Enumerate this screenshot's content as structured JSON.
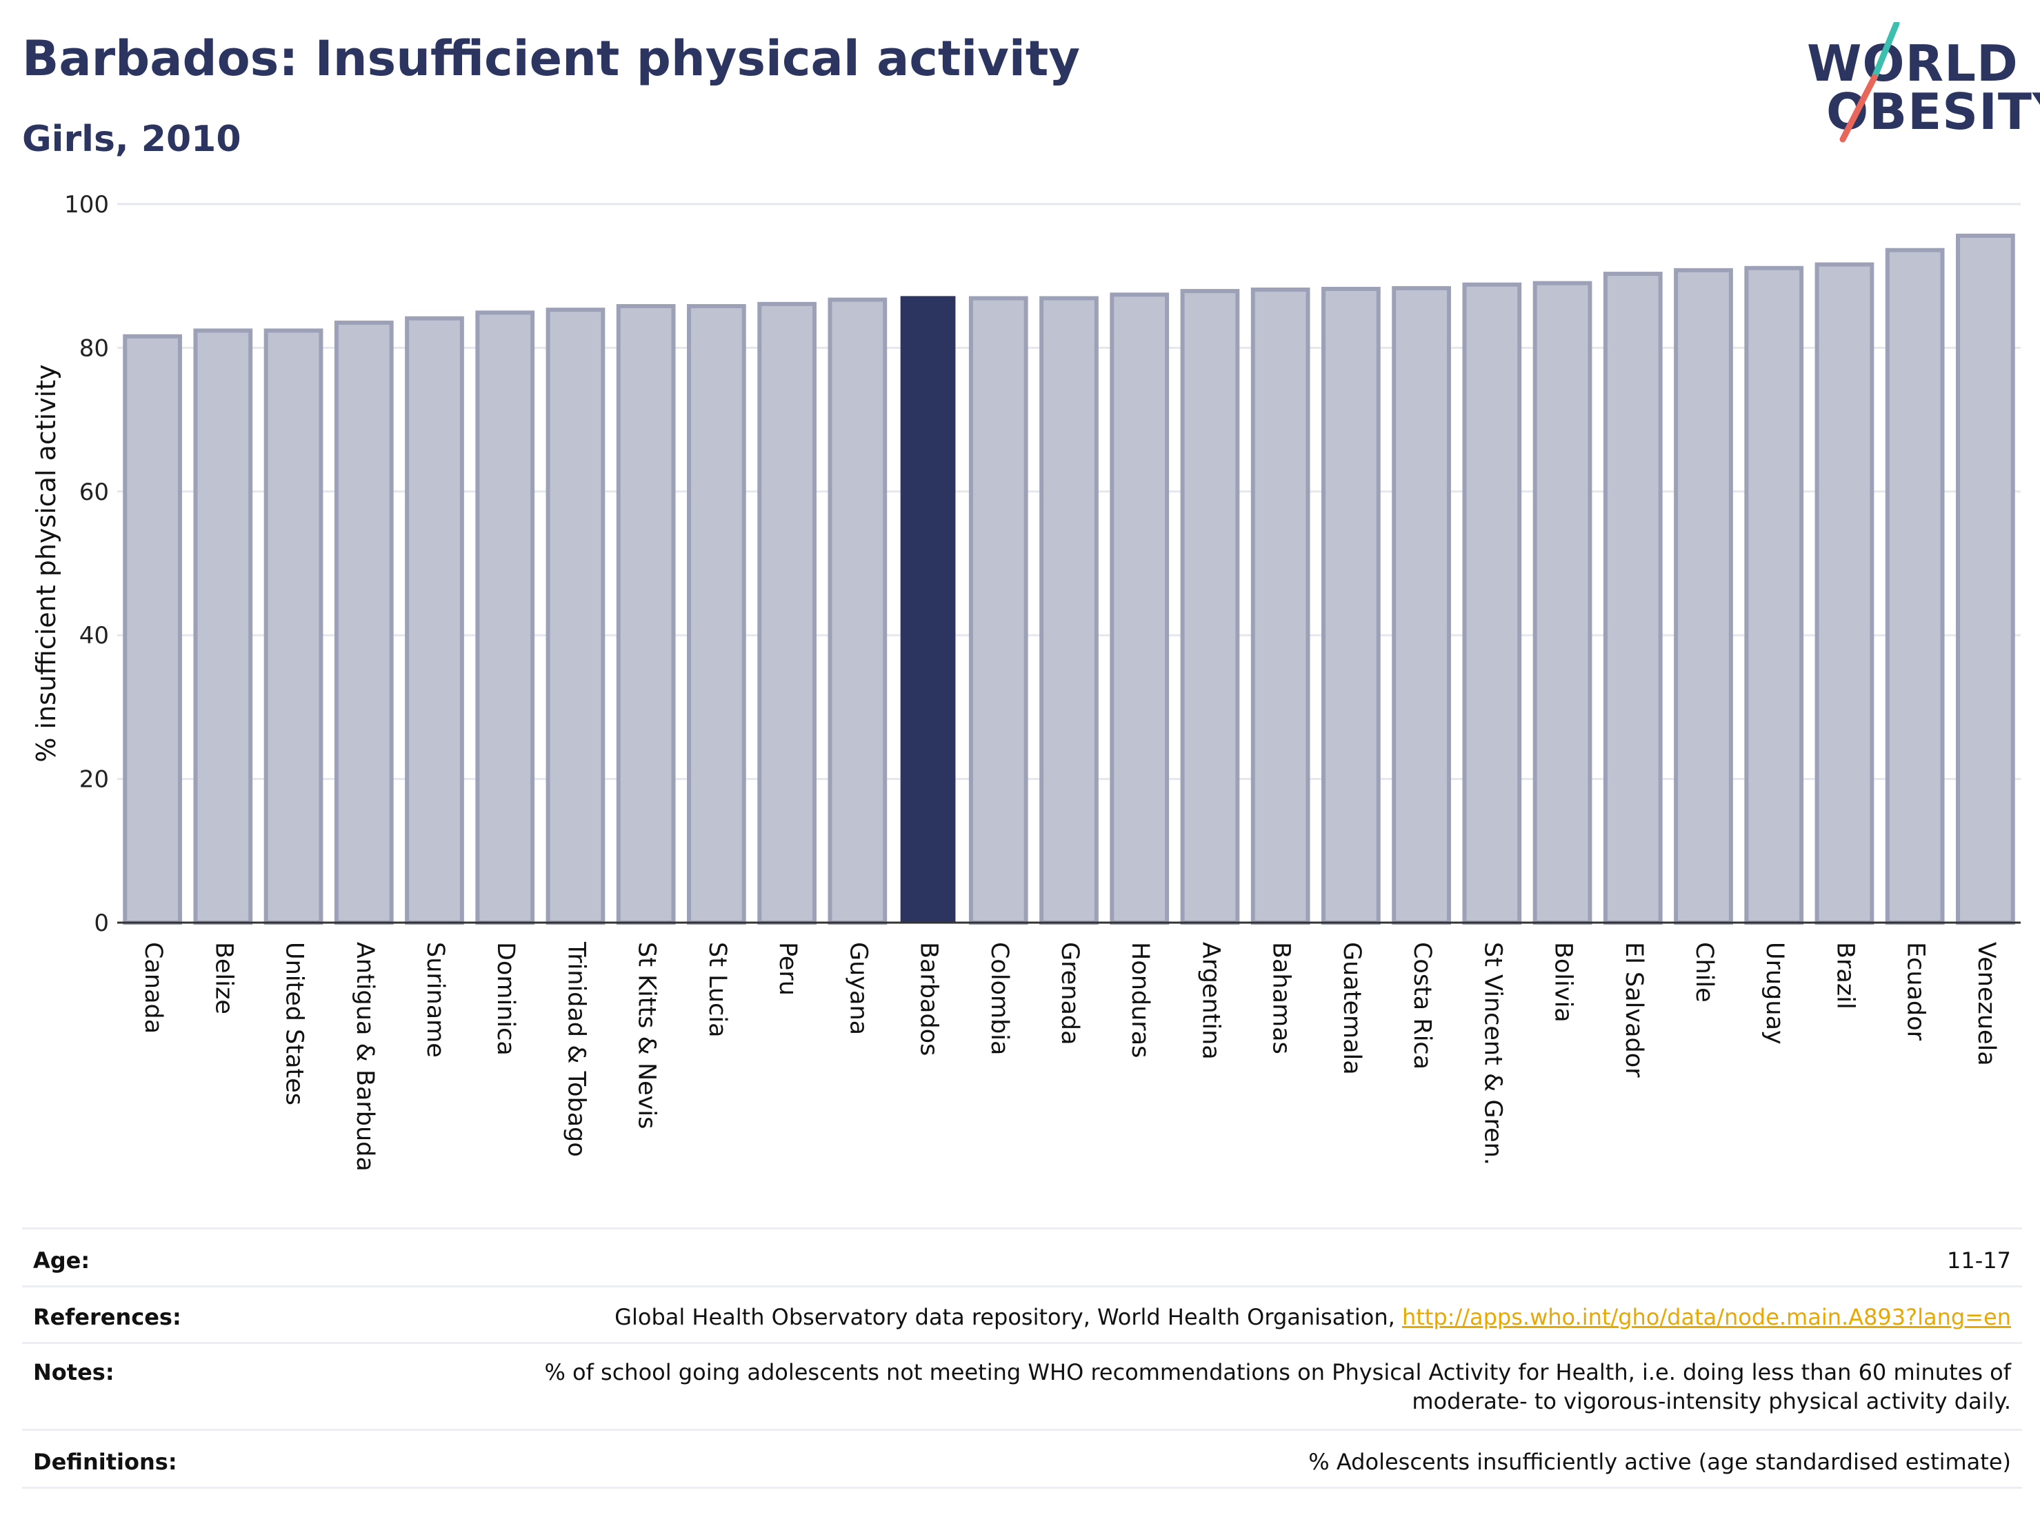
{
  "header": {
    "title": "Barbados: Insufficient physical activity",
    "subtitle": "Girls, 2010"
  },
  "logo": {
    "line1": "WORLD",
    "line2": "OBESITY",
    "slash_top_color": "#3cbfae",
    "slash_bottom_color": "#e8675a"
  },
  "chart_data": {
    "type": "bar",
    "ylabel": "% insufficient physical activity",
    "ylim": [
      0,
      100
    ],
    "yticks": [
      0,
      20,
      40,
      60,
      80,
      100
    ],
    "grid": true,
    "highlight": "Barbados",
    "colors": {
      "bar": "#bfc2d1",
      "bar_edge": "#9da1b8",
      "highlight": "#2b3560",
      "grid": "#e6e7ed",
      "axis": "#333333"
    },
    "categories": [
      "Canada",
      "Belize",
      "United States",
      "Antigua & Barbuda",
      "Suriname",
      "Dominica",
      "Trinidad & Tobago",
      "St Kitts & Nevis",
      "St Lucia",
      "Peru",
      "Guyana",
      "Barbados",
      "Colombia",
      "Grenada",
      "Honduras",
      "Argentina",
      "Bahamas",
      "Guatemala",
      "Costa Rica",
      "St Vincent & Gren.",
      "Bolivia",
      "El Salvador",
      "Chile",
      "Uruguay",
      "Brazil",
      "Ecuador",
      "Venezuela"
    ],
    "values": [
      81.6,
      82.4,
      82.4,
      83.5,
      84.1,
      84.9,
      85.3,
      85.8,
      85.8,
      86.1,
      86.7,
      87.2,
      86.9,
      86.9,
      87.4,
      87.9,
      88.1,
      88.2,
      88.3,
      88.8,
      89.0,
      90.3,
      90.8,
      91.1,
      91.6,
      93.6,
      95.6
    ]
  },
  "meta": {
    "age_label": "Age:",
    "age_value": "11-17",
    "references_label": "References:",
    "references_text": "Global Health Observatory data repository, World Health Organisation,",
    "references_link": "http://apps.who.int/gho/data/node.main.A893?lang=en",
    "notes_label": "Notes:",
    "notes_line1": "% of school going adolescents not meeting WHO recommendations on Physical Activity for Health, i.e. doing less than 60 minutes of",
    "notes_line2": "moderate- to vigorous-intensity physical activity daily.",
    "definitions_label": "Definitions:",
    "definitions_value": "% Adolescents insufficiently active (age standardised estimate)"
  }
}
